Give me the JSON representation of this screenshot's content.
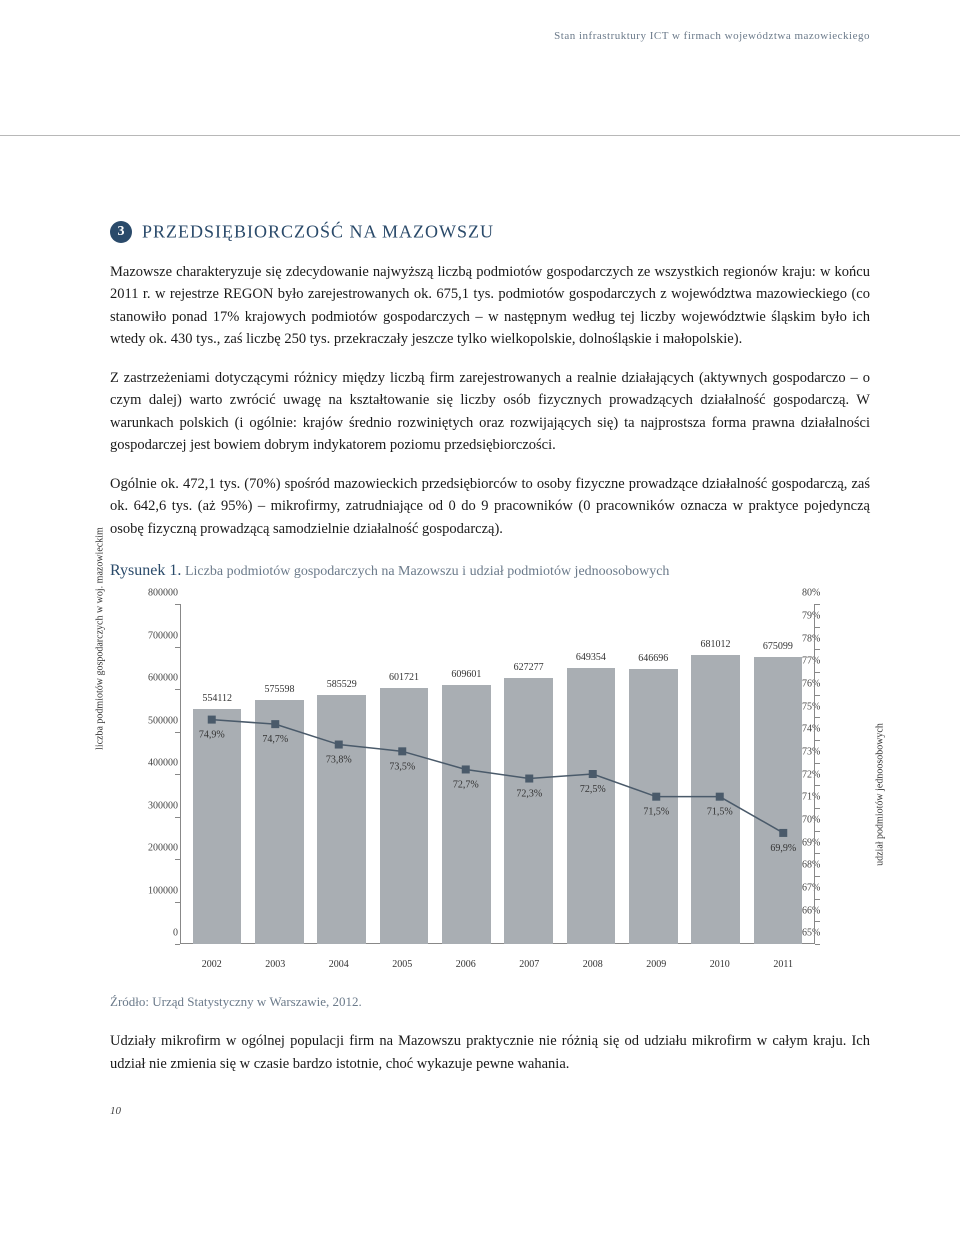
{
  "header": {
    "running": "Stan infrastruktury ICT w firmach województwa mazowieckiego"
  },
  "section": {
    "number": "❸",
    "title": "PRZEDSIĘBIORCZOŚĆ NA MAZOWSZU"
  },
  "paras": {
    "p1": "Mazowsze charakteryzuje się zdecydowanie najwyższą liczbą podmiotów gospodarczych ze wszystkich regionów kraju: w końcu 2011 r. w rejestrze REGON było zarejestrowanych ok. 675,1 tys. podmiotów gospodarczych z województwa mazowieckiego (co stanowiło ponad 17% krajowych podmiotów gospodarczych – w następnym według tej liczby województwie śląskim było ich wtedy ok. 430 tys., zaś liczbę 250 tys. przekraczały jeszcze tylko wielkopolskie, dolnośląskie i małopolskie).",
    "p2": "Z zastrzeżeniami dotyczącymi różnicy między liczbą firm zarejestrowanych a realnie działających (aktywnych gospodarczo – o czym dalej) warto zwrócić uwagę na kształtowanie się liczby osób fizycznych prowadzących działalność gospodarczą. W warunkach polskich (i ogólnie: krajów średnio rozwiniętych oraz rozwijających się) ta najprostsza forma prawna działalności gospodarczej jest bowiem dobrym indykatorem poziomu przedsiębiorczości.",
    "p3": "Ogólnie ok. 472,1 tys. (70%) spośród mazowieckich przedsiębiorców to osoby fizyczne prowadzące działalność gospodarczą, zaś ok. 642,6 tys. (aż 95%) – mikrofirmy, zatrudniające od 0 do 9 pracowników (0 pracowników oznacza w praktyce pojedynczą osobę fizyczną prowadzącą samodzielnie działalność gospodarczą).",
    "p4": "Udziały mikrofirm w ogólnej populacji firm na Mazowszu praktycznie nie różnią się od udziału mikrofirm w całym kraju. Ich udział nie zmienia się w czasie bardzo istotnie, choć wykazuje pewne wahania."
  },
  "figure": {
    "label": "Rysunek 1.",
    "desc": "Liczba podmiotów gospodarczych na Mazowszu i udział podmiotów jednoosobowych",
    "source": "Źródło: Urząd Statystyczny w Warszawie, 2012."
  },
  "chart": {
    "type": "bar+line",
    "y_left": {
      "label": "liczba podmiotów gospodarczych w woj. mazowieckim",
      "min": 0,
      "max": 800000,
      "step": 100000,
      "ticks": [
        "0",
        "100000",
        "200000",
        "300000",
        "400000",
        "500000",
        "600000",
        "700000",
        "800000"
      ]
    },
    "y_right": {
      "label": "udział podmiotów jednoosobowych",
      "min": 65,
      "max": 80,
      "step": 1,
      "ticks": [
        "65%",
        "66%",
        "67%",
        "68%",
        "69%",
        "70%",
        "71%",
        "72%",
        "73%",
        "74%",
        "75%",
        "76%",
        "77%",
        "78%",
        "79%",
        "80%"
      ]
    },
    "x_categories": [
      "2002",
      "2003",
      "2004",
      "2005",
      "2006",
      "2007",
      "2008",
      "2009",
      "2010",
      "2011"
    ],
    "bars": {
      "values": [
        554112,
        575598,
        585529,
        601721,
        609601,
        627277,
        649354,
        646696,
        681012,
        675099
      ],
      "labels": [
        "554112",
        "575598",
        "585529",
        "601721",
        "609601",
        "627277",
        "649354",
        "646696",
        "681012",
        "675099"
      ],
      "color": "#a9aeb3"
    },
    "line": {
      "values": [
        74.9,
        74.7,
        73.8,
        73.5,
        72.7,
        72.3,
        72.5,
        71.5,
        71.5,
        69.9
      ],
      "labels": [
        "74,9%",
        "74,7%",
        "73,8%",
        "73,5%",
        "72,7%",
        "72,3%",
        "72,5%",
        "71,5%",
        "71,5%",
        "69,9%"
      ],
      "color": "#4a5a6a",
      "marker": "square"
    },
    "background_color": "#ffffff",
    "axis_color": "#888888",
    "label_fontsize": 10
  },
  "page_number": "10"
}
